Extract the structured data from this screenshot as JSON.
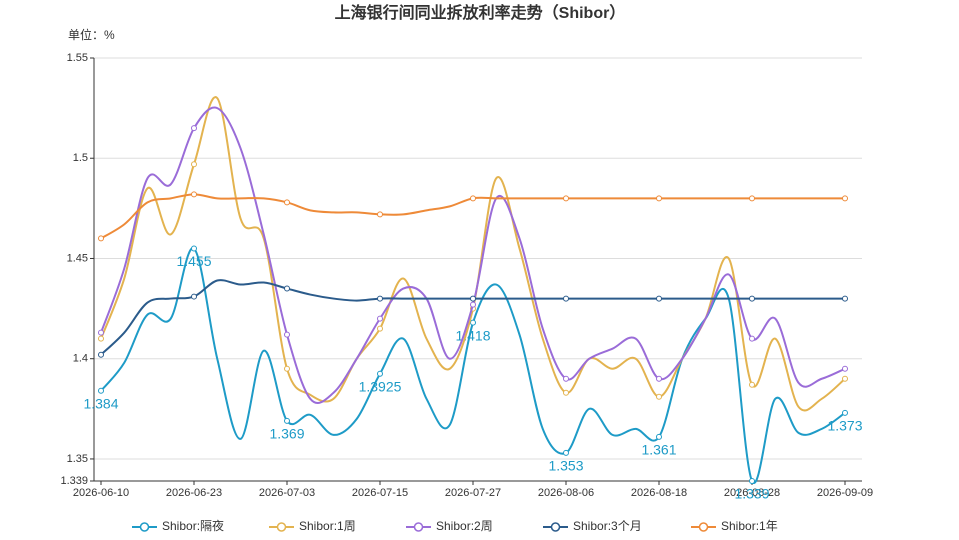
{
  "chart_data": {
    "type": "line",
    "title": "上海银行间同业拆放利率走势（Shibor）",
    "y_unit": "单位：%",
    "categories": [
      "2026-06-10",
      null,
      null,
      null,
      "2026-06-23",
      null,
      null,
      null,
      "2026-07-03",
      null,
      null,
      null,
      "2026-07-15",
      null,
      null,
      null,
      "2026-07-27",
      null,
      null,
      null,
      "2026-08-06",
      null,
      null,
      null,
      "2026-08-18",
      null,
      null,
      null,
      "2026-08-28",
      null,
      null,
      null,
      "2026-09-09"
    ],
    "ylim": [
      1.339,
      1.55
    ],
    "yticks": [
      1.339,
      1.35,
      1.4,
      1.45,
      1.5,
      1.55
    ],
    "grid": true,
    "smooth": true,
    "legend": "bottom",
    "series": [
      {
        "name": "Shibor:隔夜",
        "color": "#1e9bc7",
        "show_labels": true,
        "values": [
          1.384,
          1.398,
          1.422,
          1.42,
          1.455,
          1.4,
          1.36,
          1.404,
          1.369,
          1.372,
          1.362,
          1.37,
          1.3925,
          1.41,
          1.38,
          1.367,
          1.418,
          1.437,
          1.412,
          1.365,
          1.353,
          1.375,
          1.362,
          1.365,
          1.361,
          1.4,
          1.42,
          1.43,
          1.339,
          1.38,
          1.363,
          1.365,
          1.373
        ]
      },
      {
        "name": "Shibor:1周",
        "color": "#e3b34f",
        "values": [
          1.41,
          1.44,
          1.485,
          1.462,
          1.497,
          1.53,
          1.47,
          1.46,
          1.395,
          1.382,
          1.38,
          1.4,
          1.415,
          1.44,
          1.41,
          1.395,
          1.425,
          1.49,
          1.455,
          1.41,
          1.383,
          1.4,
          1.395,
          1.4,
          1.381,
          1.4,
          1.42,
          1.45,
          1.387,
          1.41,
          1.376,
          1.38,
          1.39
        ]
      },
      {
        "name": "Shibor:2周",
        "color": "#9a6cd8",
        "values": [
          1.413,
          1.445,
          1.49,
          1.487,
          1.515,
          1.525,
          1.505,
          1.462,
          1.412,
          1.38,
          1.383,
          1.4,
          1.42,
          1.435,
          1.43,
          1.4,
          1.427,
          1.48,
          1.46,
          1.415,
          1.39,
          1.4,
          1.405,
          1.41,
          1.39,
          1.4,
          1.42,
          1.442,
          1.41,
          1.42,
          1.388,
          1.39,
          1.395
        ]
      },
      {
        "name": "Shibor:3个月",
        "color": "#2b5b8b",
        "values": [
          1.402,
          1.413,
          1.428,
          1.43,
          1.431,
          1.439,
          1.437,
          1.438,
          1.435,
          1.432,
          1.43,
          1.429,
          1.43,
          1.43,
          1.43,
          1.43,
          1.43,
          1.43,
          1.43,
          1.43,
          1.43,
          1.43,
          1.43,
          1.43,
          1.43,
          1.43,
          1.43,
          1.43,
          1.43,
          1.43,
          1.43,
          1.43,
          1.43
        ]
      },
      {
        "name": "Shibor:1年",
        "color": "#ee8a38",
        "values": [
          1.46,
          1.467,
          1.478,
          1.48,
          1.482,
          1.48,
          1.48,
          1.48,
          1.478,
          1.474,
          1.473,
          1.473,
          1.472,
          1.472,
          1.474,
          1.476,
          1.48,
          1.48,
          1.48,
          1.48,
          1.48,
          1.48,
          1.48,
          1.48,
          1.48,
          1.48,
          1.48,
          1.48,
          1.48,
          1.48,
          1.48,
          1.48,
          1.48
        ]
      }
    ]
  }
}
